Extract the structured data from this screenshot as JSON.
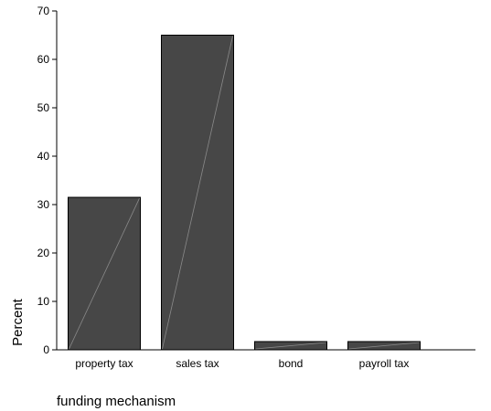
{
  "chart_data": {
    "type": "bar",
    "title": "",
    "xlabel": "funding mechanism",
    "ylabel": "Percent",
    "categories": [
      "property tax",
      "sales tax",
      "bond",
      "payroll tax"
    ],
    "values": [
      31.5,
      65,
      1.7,
      1.7
    ],
    "ylim": [
      0,
      70
    ],
    "yticks": [
      0,
      10,
      20,
      30,
      40,
      50,
      60,
      70
    ],
    "grid": false,
    "legend": "none",
    "colors": {
      "bar": "#474747",
      "bar_stroke": "#000000",
      "diagonal": "#8a8a8a",
      "axis": "#000000"
    }
  }
}
